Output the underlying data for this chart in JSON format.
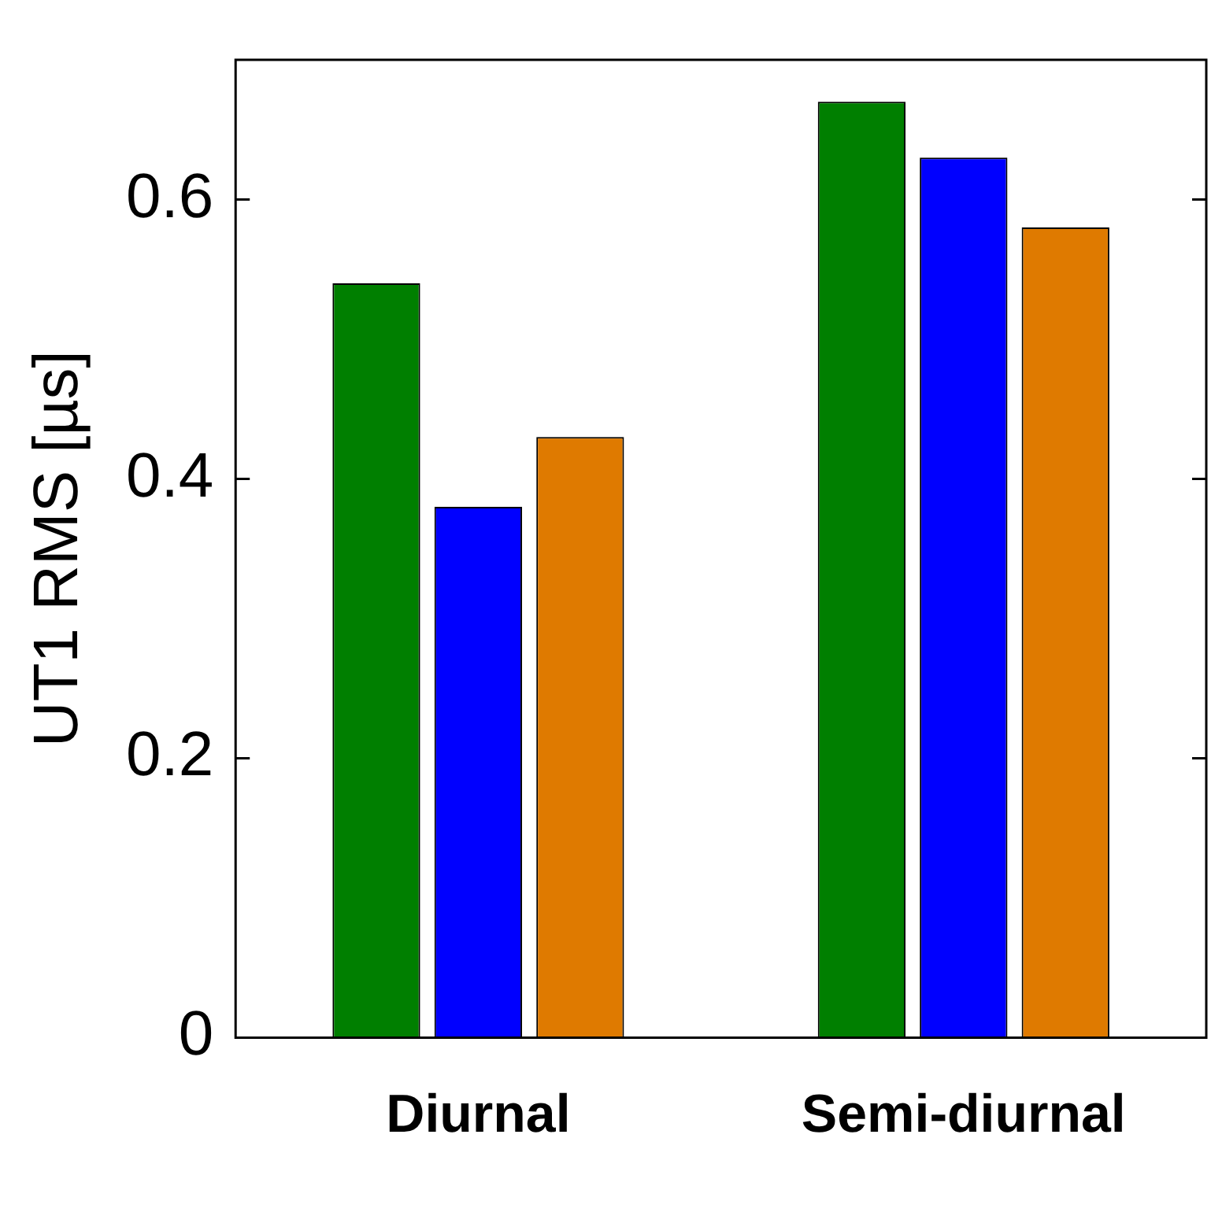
{
  "chart_data": {
    "type": "bar",
    "ylabel": "UT1 RMS [µs]",
    "categories": [
      "Diurnal",
      "Semi-diurnal"
    ],
    "series": [
      {
        "color": "#007f00",
        "values": [
          0.54,
          0.67
        ]
      },
      {
        "color": "#0000ff",
        "values": [
          0.38,
          0.63
        ]
      },
      {
        "color": "#df7a00",
        "values": [
          0.43,
          0.58
        ]
      }
    ],
    "ylim": [
      0,
      0.7
    ],
    "yticks": [
      0,
      0.2,
      0.4,
      0.6
    ],
    "grid": false,
    "legend": false
  }
}
